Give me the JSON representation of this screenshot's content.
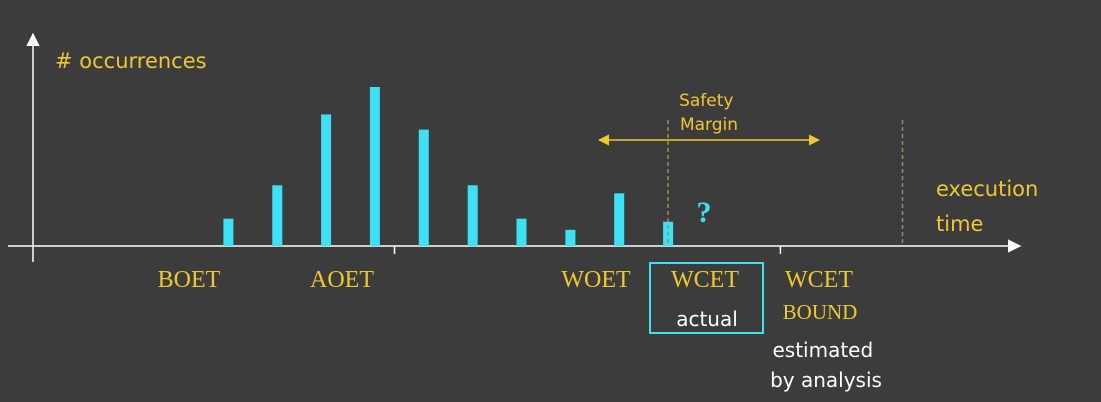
{
  "chart_data": {
    "type": "bar",
    "ylabel": "# occurrences",
    "xlabel": "execution time",
    "x": [
      1,
      2,
      3,
      4,
      5,
      6,
      7,
      8,
      9,
      10
    ],
    "values": [
      27,
      60,
      130,
      157,
      115,
      60,
      27,
      16,
      52,
      24
    ],
    "xlim": [
      -3,
      17
    ],
    "ylim": [
      0,
      160
    ],
    "markers": [
      {
        "name": "BOET",
        "x": 1
      },
      {
        "name": "AOET",
        "x": 4.4
      },
      {
        "name": "WOET",
        "x": 10
      },
      {
        "name": "WCET",
        "x": 12.3,
        "note": "actual",
        "boxed": true,
        "unknown_mark": "?"
      },
      {
        "name": "WCET",
        "x": 14.8,
        "subtitle": "BOUND",
        "note": "estimated by analysis"
      }
    ],
    "annotations": [
      {
        "text": "Safety Margin",
        "from": "WOET",
        "to": "WCET BOUND"
      }
    ]
  },
  "colors": {
    "background": "#3c3c3c",
    "bar": "#3ee0f5",
    "axis": "#ffffff",
    "label": "#eec830",
    "guide": "#a38a55",
    "text": "#ffffff",
    "box": "#3ee0f5"
  }
}
